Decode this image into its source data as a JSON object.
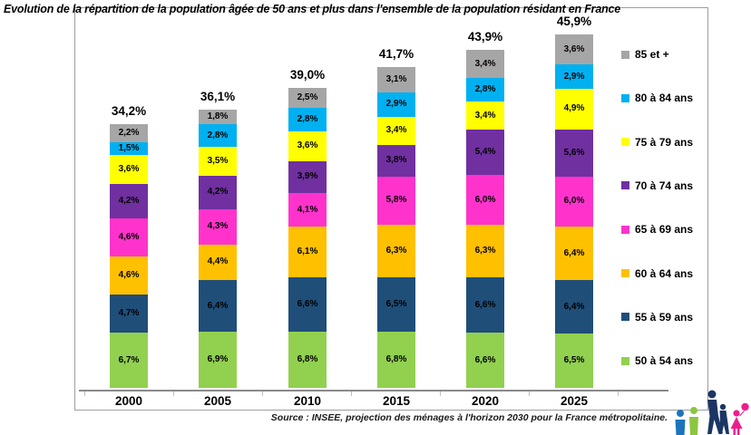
{
  "title": "Evolution de la répartition de la population âgée de 50 ans et plus dans l'ensemble de la population résidant en France",
  "source": "Source : INSEE, projection des ménages à l'horizon 2030 pour la France métropolitaine.",
  "chart_data": {
    "type": "bar",
    "stacked": true,
    "legend_position": "right",
    "unit": "%",
    "grid": false,
    "categories": [
      "2000",
      "2005",
      "2010",
      "2015",
      "2020",
      "2025"
    ],
    "totals_labels": [
      "34,2%",
      "36,1%",
      "39,0%",
      "41,7%",
      "43,9%",
      "45,9%"
    ],
    "totals_numeric": [
      34.2,
      36.1,
      39.0,
      41.7,
      43.9,
      45.9
    ],
    "series": [
      {
        "name": "50 à 54 ans",
        "color": "#92D050",
        "values": [
          6.7,
          6.9,
          6.8,
          6.8,
          6.6,
          6.5
        ]
      },
      {
        "name": "55 à 59 ans",
        "color": "#1F4E79",
        "values": [
          4.7,
          6.4,
          6.6,
          6.5,
          6.6,
          6.4
        ]
      },
      {
        "name": "60 à 64 ans",
        "color": "#FFC000",
        "values": [
          4.6,
          4.4,
          6.1,
          6.3,
          6.3,
          6.4
        ]
      },
      {
        "name": "65 à 69 ans",
        "color": "#FF33CC",
        "values": [
          4.6,
          4.3,
          4.1,
          5.8,
          6.0,
          6.0
        ]
      },
      {
        "name": "70 à 74 ans",
        "color": "#7030A0",
        "values": [
          4.2,
          4.2,
          3.9,
          3.8,
          5.4,
          5.6
        ]
      },
      {
        "name": "75 à 79 ans",
        "color": "#FFFF00",
        "values": [
          3.6,
          3.5,
          3.6,
          3.4,
          3.4,
          4.9
        ]
      },
      {
        "name": "80 à 84 ans",
        "color": "#00B0F0",
        "values": [
          1.5,
          2.8,
          2.8,
          2.9,
          2.8,
          2.9
        ]
      },
      {
        "name": "85 et +",
        "color": "#A6A6A6",
        "values": [
          2.2,
          1.8,
          2.5,
          3.1,
          3.4,
          3.6
        ]
      }
    ]
  },
  "decor": {
    "description": "silhouettes de personnages (famille)",
    "colors": {
      "blue": "#1C75BC",
      "green": "#8DC63F",
      "navy": "#1B3664",
      "pink": "#EC1E8C"
    }
  }
}
